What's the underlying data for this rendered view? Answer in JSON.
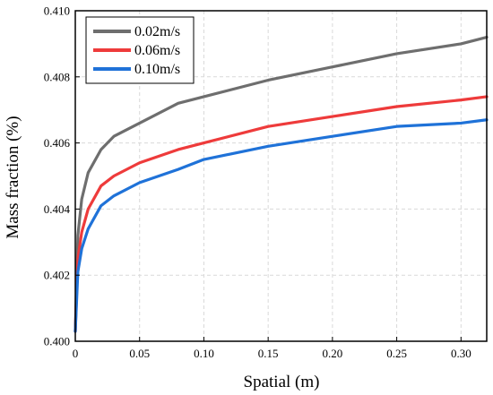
{
  "chart_data": {
    "type": "line",
    "title": "",
    "xlabel": "Spatial (m)",
    "ylabel": "Mass fraction (%)",
    "xlim": [
      0,
      0.32
    ],
    "ylim": [
      0.4,
      0.41
    ],
    "xticks": [
      0,
      0.05,
      0.1,
      0.15,
      0.2,
      0.25,
      0.3
    ],
    "xtick_labels": [
      "0",
      "0.05",
      "0.10",
      "0.15",
      "0.20",
      "0.25",
      "0.30"
    ],
    "yticks": [
      0.4,
      0.402,
      0.404,
      0.406,
      0.408,
      0.41
    ],
    "ytick_labels": [
      "0.400",
      "0.402",
      "0.404",
      "0.406",
      "0.408",
      "0.410"
    ],
    "grid": true,
    "legend_position": "top-left",
    "series": [
      {
        "name": "0.02m/s",
        "color": "#6e6e6e",
        "x": [
          0,
          0.002,
          0.005,
          0.01,
          0.02,
          0.03,
          0.05,
          0.08,
          0.1,
          0.15,
          0.2,
          0.25,
          0.3,
          0.32
        ],
        "y": [
          0.4003,
          0.4032,
          0.4043,
          0.4051,
          0.4058,
          0.4062,
          0.4066,
          0.4072,
          0.4074,
          0.4079,
          0.4083,
          0.4087,
          0.409,
          0.4092
        ]
      },
      {
        "name": "0.06m/s",
        "color": "#ee3b3b",
        "x": [
          0,
          0.002,
          0.005,
          0.01,
          0.02,
          0.03,
          0.05,
          0.08,
          0.1,
          0.15,
          0.2,
          0.25,
          0.3,
          0.32
        ],
        "y": [
          0.4003,
          0.4025,
          0.4033,
          0.404,
          0.4047,
          0.405,
          0.4054,
          0.4058,
          0.406,
          0.4065,
          0.4068,
          0.4071,
          0.4073,
          0.4074
        ]
      },
      {
        "name": "0.10m/s",
        "color": "#1f72d8",
        "x": [
          0,
          0.002,
          0.005,
          0.01,
          0.02,
          0.03,
          0.05,
          0.08,
          0.1,
          0.15,
          0.2,
          0.25,
          0.3,
          0.32
        ],
        "y": [
          0.4003,
          0.4021,
          0.4028,
          0.4034,
          0.4041,
          0.4044,
          0.4048,
          0.4052,
          0.4055,
          0.4059,
          0.4062,
          0.4065,
          0.4066,
          0.4067
        ]
      }
    ]
  }
}
